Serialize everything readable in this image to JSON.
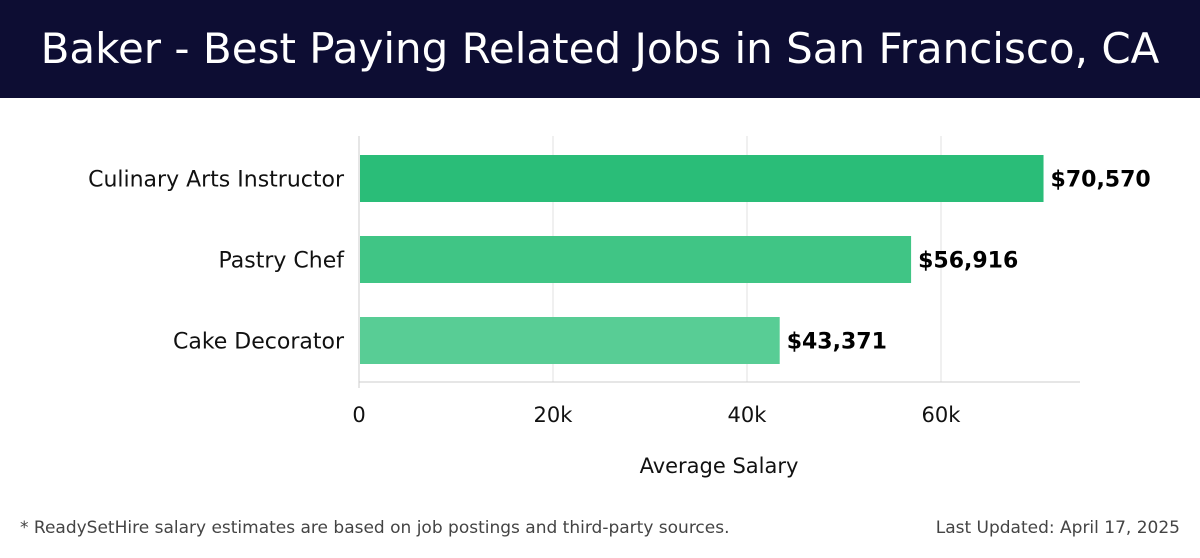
{
  "header": {
    "title": "Baker - Best Paying Related Jobs in San Francisco, CA"
  },
  "chart_data": {
    "type": "bar",
    "orientation": "horizontal",
    "categories": [
      "Culinary Arts Instructor",
      "Pastry Chef",
      "Cake Decorator"
    ],
    "values": [
      70570,
      56916,
      43371
    ],
    "value_labels": [
      "$70,570",
      "$56,916",
      "$43,371"
    ],
    "bar_colors": [
      "#2abd78",
      "#40c585",
      "#58cd95"
    ],
    "xlabel": "Average Salary",
    "ylabel": "",
    "xlim": [
      0,
      74500
    ],
    "xticks": [
      0,
      20000,
      40000,
      60000
    ],
    "xtick_labels": [
      "0",
      "20k",
      "40k",
      "60k"
    ],
    "grid": true
  },
  "footer": {
    "note": "* ReadySetHire salary estimates are based on job postings and third-party sources.",
    "updated": "Last Updated: April 17, 2025"
  }
}
